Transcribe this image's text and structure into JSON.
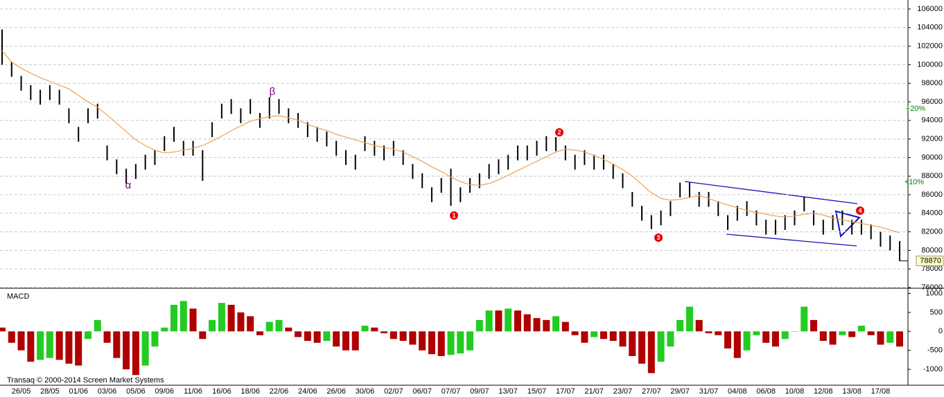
{
  "chart_data": [
    {
      "type": "ohlc",
      "categories": [
        null,
        null,
        "26/05",
        null,
        null,
        "28/05",
        null,
        null,
        "01/06",
        null,
        null,
        "03/06",
        null,
        null,
        "05/06",
        null,
        null,
        "09/06",
        null,
        null,
        "11/06",
        null,
        null,
        "16/06",
        null,
        null,
        "18/06",
        null,
        null,
        "22/06",
        null,
        null,
        "24/06",
        null,
        null,
        "26/06",
        null,
        null,
        "30/06",
        null,
        null,
        "02/07",
        null,
        null,
        "06/07",
        null,
        null,
        "07/07",
        null,
        null,
        "09/07",
        null,
        null,
        "13/07",
        null,
        null,
        "15/07",
        null,
        null,
        "17/07",
        null,
        null,
        "21/07",
        null,
        null,
        "23/07",
        null,
        null,
        "27/07",
        null,
        null,
        "29/07",
        null,
        null,
        "31/07",
        null,
        null,
        "04/08",
        null,
        null,
        "06/08",
        null,
        null,
        "10/08",
        null,
        null,
        "12/08",
        null,
        null,
        "13/08",
        null,
        null,
        "17/08",
        null,
        null
      ],
      "high": [
        103800,
        100300,
        98800,
        97800,
        97300,
        97800,
        97300,
        95300,
        93300,
        95300,
        95800,
        91300,
        89800,
        88800,
        89300,
        90300,
        90800,
        92300,
        93300,
        91800,
        91800,
        90800,
        93800,
        95800,
        96300,
        95300,
        96300,
        94800,
        96500,
        96300,
        95300,
        94800,
        93800,
        93300,
        92800,
        91800,
        90800,
        90300,
        92300,
        91800,
        91300,
        91800,
        90800,
        89300,
        88300,
        86800,
        87800,
        88800,
        86800,
        87800,
        88300,
        89300,
        89800,
        90300,
        91300,
        91300,
        91800,
        92300,
        92200,
        91300,
        90300,
        90800,
        90300,
        90300,
        89300,
        88300,
        86300,
        84800,
        83800,
        84300,
        85300,
        87300,
        87300,
        86300,
        86300,
        85300,
        83800,
        84800,
        85300,
        84300,
        83300,
        83300,
        83800,
        84300,
        85800,
        84300,
        83300,
        83800,
        84300,
        83300,
        83300,
        82800,
        82000,
        81600,
        81000
      ],
      "low": [
        100000,
        98700,
        97200,
        96200,
        95700,
        96200,
        95700,
        93700,
        91700,
        93700,
        94200,
        89700,
        88200,
        87200,
        87700,
        88700,
        89200,
        90700,
        91700,
        90200,
        90200,
        87500,
        92200,
        94200,
        94700,
        93700,
        94700,
        93200,
        94200,
        94700,
        93700,
        93200,
        92200,
        91700,
        91200,
        90200,
        89200,
        88700,
        90700,
        90200,
        89700,
        90200,
        89200,
        87700,
        86700,
        85200,
        86200,
        84800,
        85200,
        86200,
        86700,
        87700,
        88200,
        88700,
        89700,
        89700,
        90200,
        90700,
        90700,
        89700,
        88700,
        89200,
        88700,
        88700,
        87700,
        86700,
        84700,
        83200,
        82300,
        82700,
        83700,
        85700,
        85700,
        84700,
        84700,
        83700,
        82200,
        83200,
        83700,
        82700,
        81700,
        81700,
        82200,
        82700,
        84200,
        82700,
        81700,
        82200,
        82700,
        81700,
        81700,
        81200,
        80400,
        80000,
        78870
      ],
      "ma": [
        101500,
        100300,
        99600,
        99100,
        98600,
        98200,
        97800,
        97400,
        96700,
        96000,
        95400,
        94600,
        93700,
        92800,
        91900,
        91300,
        90800,
        90500,
        90600,
        90800,
        91000,
        91300,
        91800,
        92300,
        92900,
        93400,
        93900,
        94200,
        94400,
        94500,
        94300,
        94000,
        93600,
        93200,
        92900,
        92500,
        92200,
        91900,
        91600,
        91300,
        91100,
        90900,
        90600,
        90100,
        89600,
        89000,
        88500,
        87900,
        87400,
        87100,
        87000,
        87200,
        87600,
        88100,
        88600,
        89100,
        89600,
        90100,
        90600,
        90900,
        90800,
        90600,
        90200,
        89800,
        89300,
        88700,
        88000,
        87100,
        86200,
        85600,
        85400,
        85500,
        85700,
        85900,
        85600,
        85200,
        84900,
        84600,
        84300,
        84100,
        83900,
        83700,
        83600,
        83700,
        83900,
        84000,
        83800,
        83500,
        83300,
        83100,
        82900,
        82700,
        82500,
        82200,
        81900
      ],
      "bar_color": "#000000",
      "ma_color": "#f0a050",
      "ylim": [
        76000,
        106000
      ],
      "yticks": [
        76000,
        78000,
        80000,
        82000,
        84000,
        86000,
        88000,
        90000,
        92000,
        94000,
        96000,
        98000,
        100000,
        102000,
        104000,
        106000
      ],
      "grid": true,
      "last_price": 78870,
      "annotations": [
        "α",
        "β",
        "+20%",
        "+10%"
      ],
      "waves": [
        "1",
        "2",
        "3",
        "4"
      ]
    },
    {
      "type": "macd",
      "title": "MACD",
      "values": [
        100,
        -300,
        -500,
        -800,
        -750,
        -700,
        -750,
        -850,
        -900,
        -200,
        300,
        -300,
        -700,
        -1000,
        -1150,
        -900,
        -400,
        100,
        700,
        800,
        600,
        -200,
        300,
        750,
        700,
        500,
        400,
        -100,
        250,
        300,
        100,
        -150,
        -250,
        -300,
        -250,
        -400,
        -500,
        -500,
        150,
        100,
        -50,
        -200,
        -250,
        -350,
        -500,
        -600,
        -650,
        -620,
        -580,
        -500,
        300,
        550,
        550,
        600,
        550,
        450,
        350,
        300,
        400,
        250,
        -100,
        -300,
        -150,
        -200,
        -250,
        -400,
        -650,
        -850,
        -1100,
        -800,
        -400,
        300,
        650,
        300,
        -50,
        -100,
        -450,
        -700,
        -500,
        -100,
        -300,
        -400,
        -200,
        0,
        650,
        300,
        -250,
        -350,
        -100,
        -150,
        150,
        -100,
        -350,
        -300,
        -400
      ],
      "color": "#b00000",
      "rise_color": "#22cc22",
      "ylim": [
        -1400,
        1100
      ],
      "yticks": [
        -1000,
        -500,
        0,
        500,
        1000
      ],
      "footer": "Transaq © 2000-2014 Screen Market Systems"
    }
  ]
}
